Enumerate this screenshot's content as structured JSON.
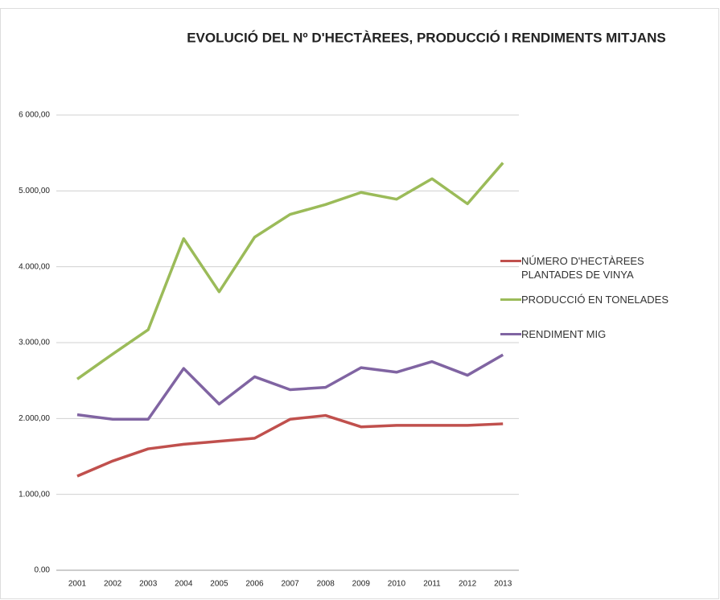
{
  "chart_data": {
    "type": "line",
    "title": "EVOLUCIÓ DEL Nº D'HECTÀREES, PRODUCCIÓ I RENDIMENTS MITJANS",
    "categories": [
      "2001",
      "2002",
      "2003",
      "2004",
      "2005",
      "2006",
      "2007",
      "2008",
      "2009",
      "2010",
      "2011",
      "2012",
      "2013"
    ],
    "series": [
      {
        "name": "NÚMERO D'HECTÀREES PLANTADES DE VINYA",
        "color": "#c0504d",
        "values": [
          1240,
          1440,
          1600,
          1660,
          1700,
          1740,
          1990,
          2040,
          1890,
          1910,
          1910,
          1910,
          1930
        ]
      },
      {
        "name": "PRODUCCIÓ EN TONELADES",
        "color": "#9bbb59",
        "values": [
          2520,
          2850,
          3170,
          4370,
          3670,
          4390,
          4690,
          4820,
          4980,
          4890,
          5160,
          4830,
          5370
        ]
      },
      {
        "name": "RENDIMENT MIG",
        "color": "#8064a2",
        "values": [
          2050,
          1990,
          1990,
          2660,
          2190,
          2550,
          2380,
          2410,
          2670,
          2610,
          2750,
          2570,
          2840
        ]
      }
    ],
    "ylim": [
      0,
      6000
    ],
    "yticks": [
      {
        "value": 0,
        "label": "0.00"
      },
      {
        "value": 1000,
        "label": "1.000,00"
      },
      {
        "value": 2000,
        "label": "2.000,00"
      },
      {
        "value": 3000,
        "label": "3.000,00"
      },
      {
        "value": 4000,
        "label": "4.000,00"
      },
      {
        "value": 5000,
        "label": "5.000,00"
      },
      {
        "value": 6000,
        "label": "6 000,00"
      }
    ],
    "grid": true,
    "legend": "right"
  }
}
